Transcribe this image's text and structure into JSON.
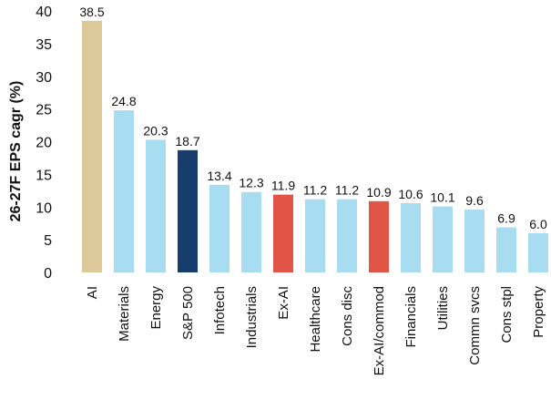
{
  "chart_data": {
    "type": "bar",
    "title": "",
    "xlabel": "",
    "ylabel": "26-27F EPS cagr (%)",
    "ylim": [
      0,
      40
    ],
    "yticks": [
      0,
      5,
      10,
      15,
      20,
      25,
      30,
      35,
      40
    ],
    "grid": false,
    "legend": "none",
    "categories": [
      "AI",
      "Materials",
      "Energy",
      "S&P 500",
      "Infotech",
      "Industrials",
      "Ex-AI",
      "Healthcare",
      "Cons disc",
      "Ex-AI/commod",
      "Financials",
      "Utilities",
      "Commn svcs",
      "Cons stpl",
      "Property"
    ],
    "values": [
      38.5,
      24.8,
      20.3,
      18.7,
      13.4,
      12.3,
      11.9,
      11.2,
      11.2,
      10.9,
      10.6,
      10.1,
      9.6,
      6.9,
      6.0
    ],
    "data_labels": [
      "38.5",
      "24.8",
      "20.3",
      "18.7",
      "13.4",
      "12.3",
      "11.9",
      "11.2",
      "11.2",
      "10.9",
      "10.6",
      "10.1",
      "9.6",
      "6.9",
      "6.0"
    ],
    "bar_colors": [
      "#dcc999",
      "#a8dcf0",
      "#a8dcf0",
      "#163d6b",
      "#a8dcf0",
      "#a8dcf0",
      "#e05545",
      "#a8dcf0",
      "#a8dcf0",
      "#e05545",
      "#a8dcf0",
      "#a8dcf0",
      "#a8dcf0",
      "#a8dcf0",
      "#a8dcf0"
    ]
  }
}
